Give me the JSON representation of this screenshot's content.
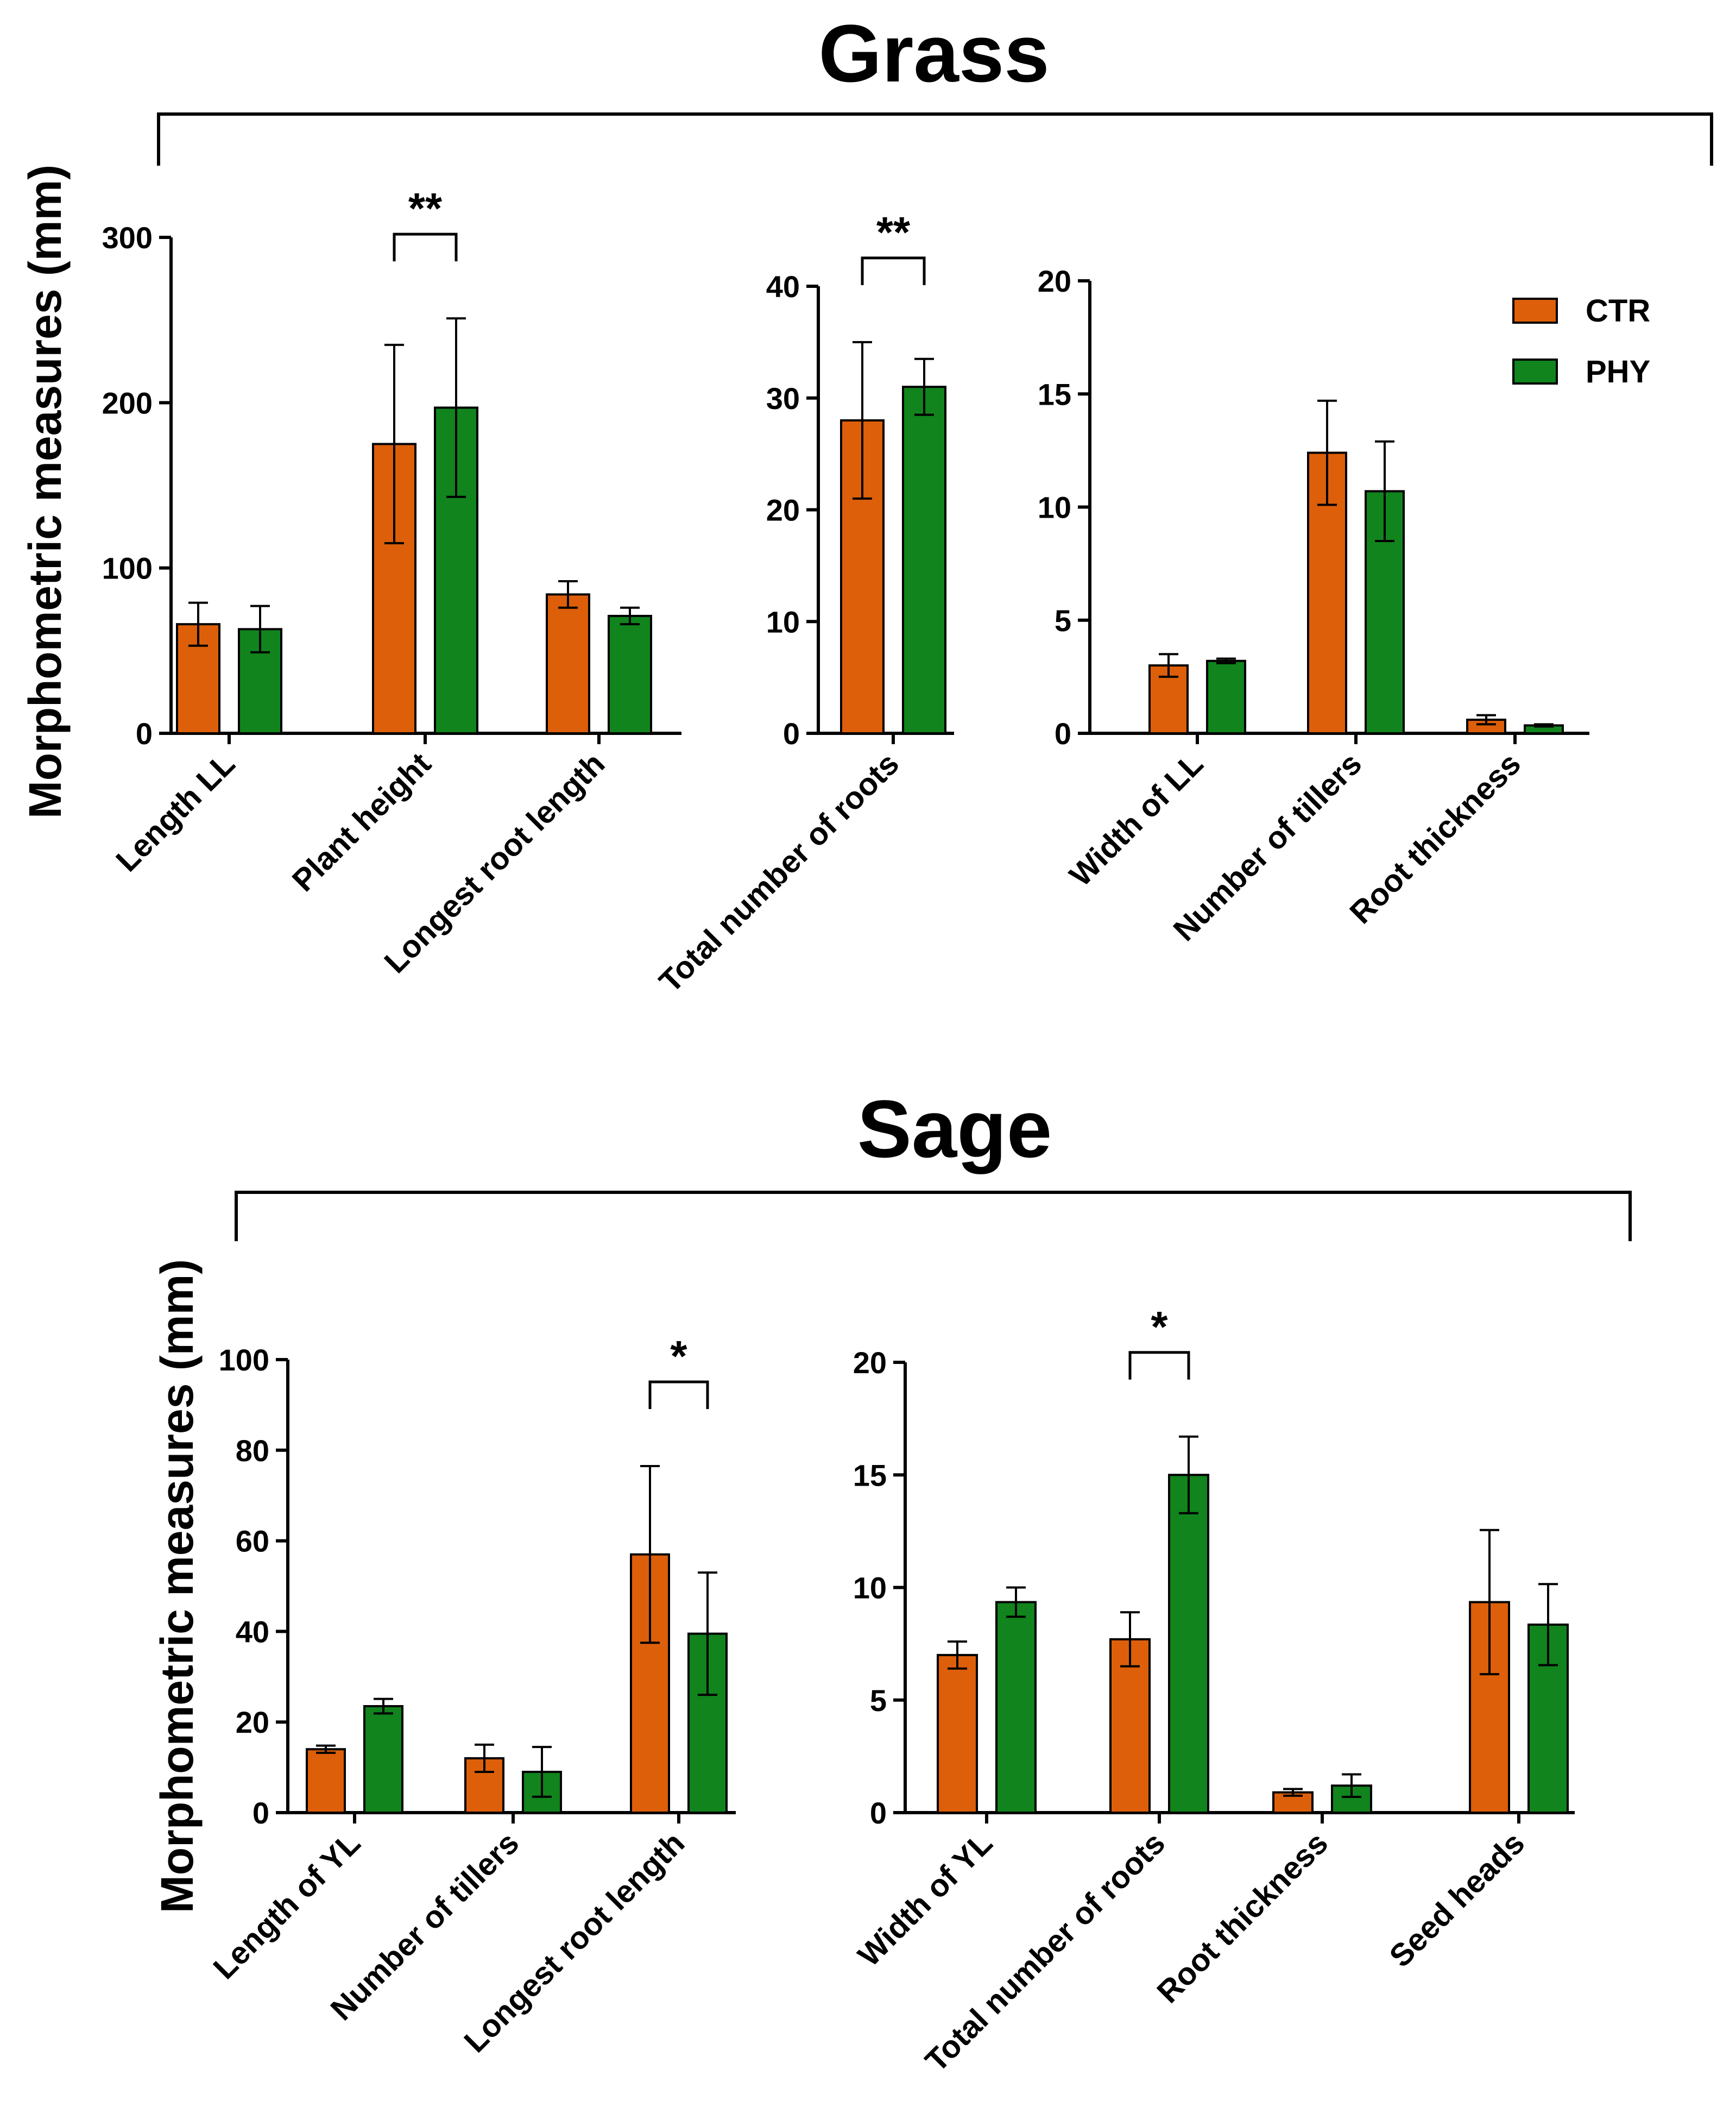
{
  "figure": {
    "colors": {
      "CTR": "#DD5F0A",
      "PHY": "#11841D"
    },
    "legend": [
      "CTR",
      "PHY"
    ],
    "sections": [
      {
        "title": "Grass",
        "ylabel": "Morphometric measures (mm)"
      },
      {
        "title": "Sage",
        "ylabel": "Morphometric measures (mm)"
      }
    ]
  },
  "chart_data": [
    {
      "type": "bar",
      "section": "Grass",
      "panel": 1,
      "categories": [
        "Length LL",
        "Plant height",
        "Longest root length"
      ],
      "series": [
        {
          "name": "CTR",
          "values": [
            66,
            175,
            84
          ],
          "errors": [
            13,
            60,
            8
          ]
        },
        {
          "name": "PHY",
          "values": [
            63,
            197,
            71
          ],
          "errors": [
            14,
            54,
            5
          ]
        }
      ],
      "ylim": [
        0,
        300
      ],
      "yticks": [
        0,
        100,
        200,
        300
      ],
      "ylabel": "Morphometric measures (mm)",
      "significance": [
        {
          "category": 1,
          "label": "**"
        }
      ]
    },
    {
      "type": "bar",
      "section": "Grass",
      "panel": 2,
      "categories": [
        "Total number of roots"
      ],
      "series": [
        {
          "name": "CTR",
          "values": [
            28
          ],
          "errors": [
            7
          ]
        },
        {
          "name": "PHY",
          "values": [
            31
          ],
          "errors": [
            2.5
          ]
        }
      ],
      "ylim": [
        0,
        40
      ],
      "yticks": [
        0,
        10,
        20,
        30,
        40
      ],
      "significance": [
        {
          "category": 0,
          "label": "**"
        }
      ]
    },
    {
      "type": "bar",
      "section": "Grass",
      "panel": 3,
      "categories": [
        "Width of LL",
        "Number of tillers",
        "Root thickness"
      ],
      "series": [
        {
          "name": "CTR",
          "values": [
            3.0,
            12.4,
            0.6
          ],
          "errors": [
            0.5,
            2.3,
            0.2
          ]
        },
        {
          "name": "PHY",
          "values": [
            3.2,
            10.7,
            0.35
          ],
          "errors": [
            0.1,
            2.2,
            0.05
          ]
        }
      ],
      "ylim": [
        0,
        20
      ],
      "yticks": [
        0,
        5,
        10,
        15,
        20
      ],
      "legend": [
        "CTR",
        "PHY"
      ]
    },
    {
      "type": "bar",
      "section": "Sage",
      "panel": 1,
      "categories": [
        "Length of YL",
        "Number of tillers",
        "Longest root length"
      ],
      "series": [
        {
          "name": "CTR",
          "values": [
            14,
            12,
            57
          ],
          "errors": [
            0.8,
            3,
            19.5
          ]
        },
        {
          "name": "PHY",
          "values": [
            23.5,
            9,
            39.5
          ],
          "errors": [
            1.6,
            5.5,
            13.5
          ]
        }
      ],
      "ylim": [
        0,
        100
      ],
      "yticks": [
        0,
        20,
        40,
        60,
        80,
        100
      ],
      "ylabel": "Morphometric measures (mm)",
      "significance": [
        {
          "category": 2,
          "label": "*"
        }
      ]
    },
    {
      "type": "bar",
      "section": "Sage",
      "panel": 2,
      "categories": [
        "Width of YL",
        "Total number of roots",
        "Root thickness",
        "Seed heads"
      ],
      "series": [
        {
          "name": "CTR",
          "values": [
            7.0,
            7.7,
            0.9,
            9.35
          ],
          "errors": [
            0.6,
            1.2,
            0.15,
            3.2
          ]
        },
        {
          "name": "PHY",
          "values": [
            9.35,
            15.0,
            1.2,
            8.35
          ],
          "errors": [
            0.65,
            1.7,
            0.5,
            1.8
          ]
        }
      ],
      "ylim": [
        0,
        20
      ],
      "yticks": [
        0,
        5,
        10,
        15,
        20
      ],
      "significance": [
        {
          "category": 1,
          "label": "*"
        }
      ]
    }
  ]
}
